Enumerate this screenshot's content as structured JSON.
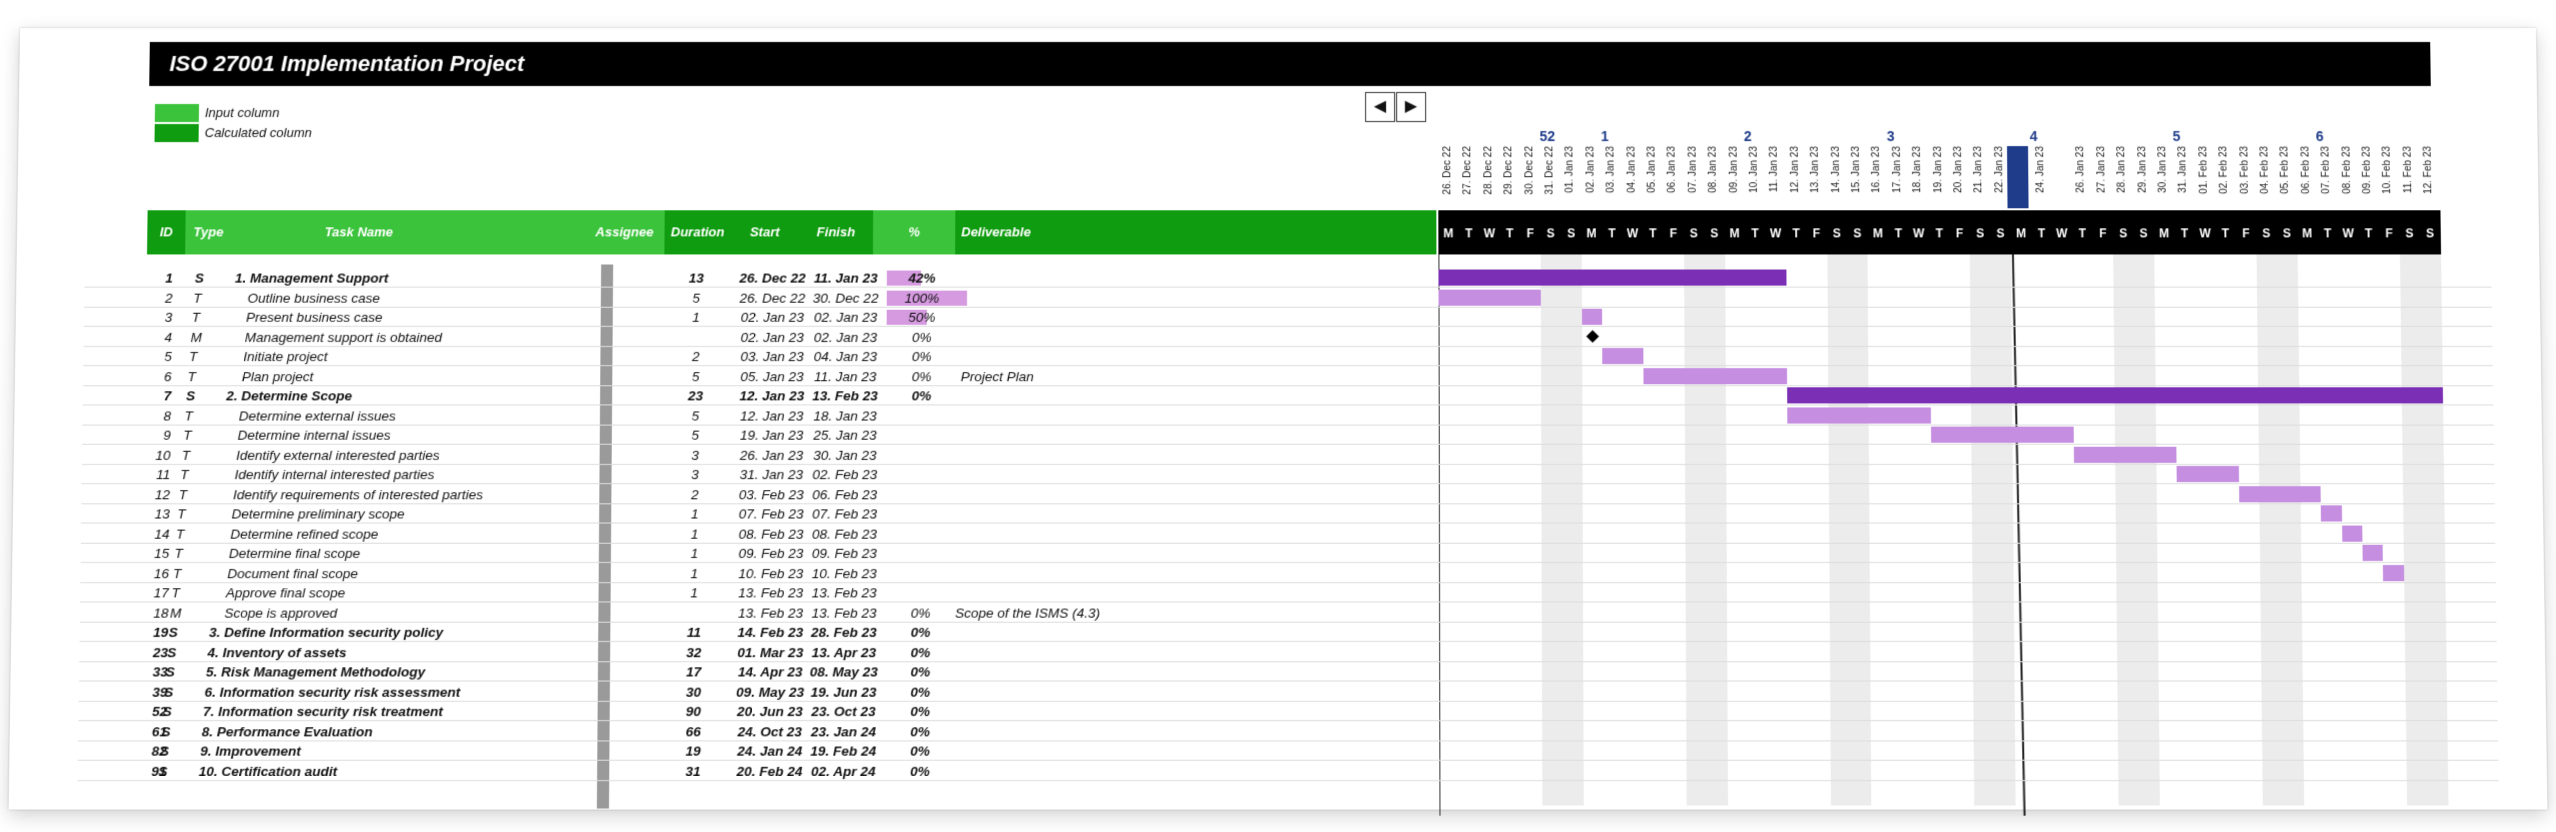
{
  "title": "ISO 27001 Implementation Project",
  "legend": {
    "input_label": "Input column",
    "calculated_label": "Calculated column",
    "input_color": "#3cc33c",
    "calculated_color": "#109c10"
  },
  "nav": {
    "prev": "◀",
    "next": "▶"
  },
  "columns": {
    "id": "ID",
    "type": "Type",
    "task": "Task Name",
    "assignee": "Assignee",
    "duration": "Duration",
    "start": "Start",
    "finish": "Finish",
    "pct": "%",
    "deliverable": "Deliverable"
  },
  "weeks": [
    "52",
    "1",
    "2",
    "3",
    "4",
    "5",
    "6"
  ],
  "days": [
    "26. Dec 22",
    "27. Dec 22",
    "28. Dec 22",
    "29. Dec 22",
    "30. Dec 22",
    "31. Dec 22",
    "01. Jan 23",
    "02. Jan 23",
    "03. Jan 23",
    "04. Jan 23",
    "05. Jan 23",
    "06. Jan 23",
    "07. Jan 23",
    "08. Jan 23",
    "09. Jan 23",
    "10. Jan 23",
    "11. Jan 23",
    "12. Jan 23",
    "13. Jan 23",
    "14. Jan 23",
    "15. Jan 23",
    "16. Jan 23",
    "17. Jan 23",
    "18. Jan 23",
    "19. Jan 23",
    "20. Jan 23",
    "21. Jan 23",
    "22. Jan 23",
    "23. Jan 23",
    "24. Jan 23",
    "25. Jan 23",
    "26. Jan 23",
    "27. Jan 23",
    "28. Jan 23",
    "29. Jan 23",
    "30. Jan 23",
    "31. Jan 23",
    "01. Feb 23",
    "02. Feb 23",
    "03. Feb 23",
    "04. Feb 23",
    "05. Feb 23",
    "06. Feb 23",
    "07. Feb 23",
    "08. Feb 23",
    "09. Feb 23",
    "10. Feb 23",
    "11. Feb 23",
    "12. Feb 23"
  ],
  "day_letters": [
    "M",
    "T",
    "W",
    "T",
    "F",
    "S",
    "S"
  ],
  "today": "25. Jan 23",
  "colors": {
    "summary_bar": "#7a2fb4",
    "task_bar": "#c58ee0",
    "pct_bar": "#d69ae0",
    "today": "#1f3c8a"
  },
  "rows": [
    {
      "id": "1",
      "type": "S",
      "task": "1. Management Support",
      "assignee": "",
      "duration": "13",
      "start": "26. Dec 22",
      "finish": "11. Jan 23",
      "pct": "42%",
      "pct_value": 0.42,
      "deliverable": "",
      "bold": true
    },
    {
      "id": "2",
      "type": "T",
      "task": "Outline business case",
      "assignee": "",
      "duration": "5",
      "start": "26. Dec 22",
      "finish": "30. Dec 22",
      "pct": "100%",
      "pct_value": 1.0,
      "deliverable": "",
      "bold": false
    },
    {
      "id": "3",
      "type": "T",
      "task": "Present business case",
      "assignee": "",
      "duration": "1",
      "start": "02. Jan 23",
      "finish": "02. Jan 23",
      "pct": "50%",
      "pct_value": 0.5,
      "deliverable": "",
      "bold": false
    },
    {
      "id": "4",
      "type": "M",
      "task": "Management support is obtained",
      "assignee": "",
      "duration": "",
      "start": "02. Jan 23",
      "finish": "02. Jan 23",
      "pct": "0%",
      "pct_value": 0,
      "deliverable": "",
      "bold": false
    },
    {
      "id": "5",
      "type": "T",
      "task": "Initiate project",
      "assignee": "",
      "duration": "2",
      "start": "03. Jan 23",
      "finish": "04. Jan 23",
      "pct": "0%",
      "pct_value": 0,
      "deliverable": "",
      "bold": false
    },
    {
      "id": "6",
      "type": "T",
      "task": "Plan project",
      "assignee": "",
      "duration": "5",
      "start": "05. Jan 23",
      "finish": "11. Jan 23",
      "pct": "0%",
      "pct_value": 0,
      "deliverable": "Project Plan",
      "bold": false
    },
    {
      "id": "7",
      "type": "S",
      "task": "2. Determine Scope",
      "assignee": "",
      "duration": "23",
      "start": "12. Jan 23",
      "finish": "13. Feb 23",
      "pct": "0%",
      "pct_value": 0,
      "deliverable": "",
      "bold": true
    },
    {
      "id": "8",
      "type": "T",
      "task": "Determine external issues",
      "assignee": "",
      "duration": "5",
      "start": "12. Jan 23",
      "finish": "18. Jan 23",
      "pct": "",
      "pct_value": 0,
      "deliverable": "",
      "bold": false
    },
    {
      "id": "9",
      "type": "T",
      "task": "Determine internal issues",
      "assignee": "",
      "duration": "5",
      "start": "19. Jan 23",
      "finish": "25. Jan 23",
      "pct": "",
      "pct_value": 0,
      "deliverable": "",
      "bold": false
    },
    {
      "id": "10",
      "type": "T",
      "task": "Identify external interested parties",
      "assignee": "",
      "duration": "3",
      "start": "26. Jan 23",
      "finish": "30. Jan 23",
      "pct": "",
      "pct_value": 0,
      "deliverable": "",
      "bold": false
    },
    {
      "id": "11",
      "type": "T",
      "task": "Identify internal interested parties",
      "assignee": "",
      "duration": "3",
      "start": "31. Jan 23",
      "finish": "02. Feb 23",
      "pct": "",
      "pct_value": 0,
      "deliverable": "",
      "bold": false
    },
    {
      "id": "12",
      "type": "T",
      "task": "Identify requirements of interested parties",
      "assignee": "",
      "duration": "2",
      "start": "03. Feb 23",
      "finish": "06. Feb 23",
      "pct": "",
      "pct_value": 0,
      "deliverable": "",
      "bold": false
    },
    {
      "id": "13",
      "type": "T",
      "task": "Determine preliminary scope",
      "assignee": "",
      "duration": "1",
      "start": "07. Feb 23",
      "finish": "07. Feb 23",
      "pct": "",
      "pct_value": 0,
      "deliverable": "",
      "bold": false
    },
    {
      "id": "14",
      "type": "T",
      "task": "Determine refined scope",
      "assignee": "",
      "duration": "1",
      "start": "08. Feb 23",
      "finish": "08. Feb 23",
      "pct": "",
      "pct_value": 0,
      "deliverable": "",
      "bold": false
    },
    {
      "id": "15",
      "type": "T",
      "task": "Determine final scope",
      "assignee": "",
      "duration": "1",
      "start": "09. Feb 23",
      "finish": "09. Feb 23",
      "pct": "",
      "pct_value": 0,
      "deliverable": "",
      "bold": false
    },
    {
      "id": "16",
      "type": "T",
      "task": "Document final scope",
      "assignee": "",
      "duration": "1",
      "start": "10. Feb 23",
      "finish": "10. Feb 23",
      "pct": "",
      "pct_value": 0,
      "deliverable": "",
      "bold": false
    },
    {
      "id": "17",
      "type": "T",
      "task": "Approve final scope",
      "assignee": "",
      "duration": "1",
      "start": "13. Feb 23",
      "finish": "13. Feb 23",
      "pct": "",
      "pct_value": 0,
      "deliverable": "",
      "bold": false
    },
    {
      "id": "18",
      "type": "M",
      "task": "Scope is approved",
      "assignee": "",
      "duration": "",
      "start": "13. Feb 23",
      "finish": "13. Feb 23",
      "pct": "0%",
      "pct_value": 0,
      "deliverable": "Scope of the ISMS (4.3)",
      "bold": false
    },
    {
      "id": "19",
      "type": "S",
      "task": "3. Define Information security policy",
      "assignee": "",
      "duration": "11",
      "start": "14. Feb 23",
      "finish": "28. Feb 23",
      "pct": "0%",
      "pct_value": 0,
      "deliverable": "",
      "bold": true
    },
    {
      "id": "23",
      "type": "S",
      "task": "4. Inventory of assets",
      "assignee": "",
      "duration": "32",
      "start": "01. Mar 23",
      "finish": "13. Apr 23",
      "pct": "0%",
      "pct_value": 0,
      "deliverable": "",
      "bold": true
    },
    {
      "id": "33",
      "type": "S",
      "task": "5. Risk Management Methodology",
      "assignee": "",
      "duration": "17",
      "start": "14. Apr 23",
      "finish": "08. May 23",
      "pct": "0%",
      "pct_value": 0,
      "deliverable": "",
      "bold": true
    },
    {
      "id": "39",
      "type": "S",
      "task": "6. Information security risk assessment",
      "assignee": "",
      "duration": "30",
      "start": "09. May 23",
      "finish": "19. Jun 23",
      "pct": "0%",
      "pct_value": 0,
      "deliverable": "",
      "bold": true
    },
    {
      "id": "52",
      "type": "S",
      "task": "7. Information security risk treatment",
      "assignee": "",
      "duration": "90",
      "start": "20. Jun 23",
      "finish": "23. Oct 23",
      "pct": "0%",
      "pct_value": 0,
      "deliverable": "",
      "bold": true
    },
    {
      "id": "61",
      "type": "S",
      "task": "8. Performance Evaluation",
      "assignee": "",
      "duration": "66",
      "start": "24. Oct 23",
      "finish": "23. Jan 24",
      "pct": "0%",
      "pct_value": 0,
      "deliverable": "",
      "bold": true
    },
    {
      "id": "82",
      "type": "S",
      "task": "9. Improvement",
      "assignee": "",
      "duration": "19",
      "start": "24. Jan 24",
      "finish": "19. Feb 24",
      "pct": "0%",
      "pct_value": 0,
      "deliverable": "",
      "bold": true
    },
    {
      "id": "91",
      "type": "S",
      "task": "10. Certification audit",
      "assignee": "",
      "duration": "31",
      "start": "20. Feb 24",
      "finish": "02. Apr 24",
      "pct": "0%",
      "pct_value": 0,
      "deliverable": "",
      "bold": true
    }
  ]
}
